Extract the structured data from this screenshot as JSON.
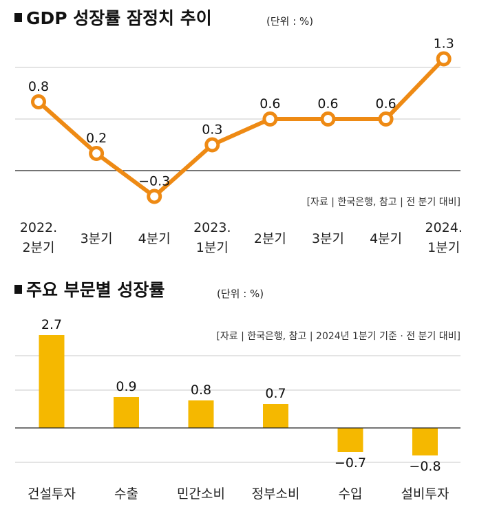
{
  "chart_data": [
    {
      "type": "line",
      "title": "GDP 성장률 잠정치 추이",
      "unit": "(단위 : %)",
      "source": "[자료 | 한국은행, 참고 | 전 분기 대비]",
      "categories": [
        [
          "2022.",
          "2분기"
        ],
        [
          "3분기"
        ],
        [
          "4분기"
        ],
        [
          "2023.",
          "1분기"
        ],
        [
          "2분기"
        ],
        [
          "3분기"
        ],
        [
          "4분기"
        ],
        [
          "2024.",
          "1분기"
        ]
      ],
      "values": [
        0.8,
        0.2,
        -0.3,
        0.3,
        0.6,
        0.6,
        0.6,
        1.3
      ],
      "value_labels": [
        "0.8",
        "0.2",
        "−0.3",
        "0.3",
        "0.6",
        "0.6",
        "0.6",
        "1.3"
      ],
      "color": "#EE8A14",
      "grid": true
    },
    {
      "type": "bar",
      "title": "주요 부문별 성장률",
      "unit": "(단위 : %)",
      "source": "[자료 | 한국은행, 참고 | 2024년 1분기 기준 · 전 분기 대비]",
      "categories": [
        "건설투자",
        "수출",
        "민간소비",
        "정부소비",
        "수입",
        "설비투자"
      ],
      "values": [
        2.7,
        0.9,
        0.8,
        0.7,
        -0.7,
        -0.8
      ],
      "value_labels": [
        "2.7",
        "0.9",
        "0.8",
        "0.7",
        "−0.7",
        "−0.8"
      ],
      "color": "#F5B800",
      "grid": true
    }
  ]
}
